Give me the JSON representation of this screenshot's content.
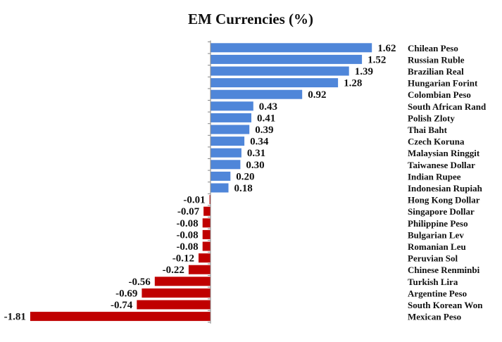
{
  "chart_data": {
    "type": "bar",
    "orientation": "horizontal",
    "title": "EM Currencies (%)",
    "xlabel": "",
    "ylabel": "",
    "xlim": [
      -1.81,
      1.62
    ],
    "categories": [
      "Chilean Peso",
      "Russian Ruble",
      "Brazilian Real",
      "Hungarian Forint",
      "Colombian Peso",
      "South African Rand",
      "Polish Zloty",
      "Thai Baht",
      "Czech Koruna",
      "Malaysian Ringgit",
      "Taiwanese Dollar",
      "Indian Rupee",
      "Indonesian Rupiah",
      "Hong Kong Dollar",
      "Singapore Dollar",
      "Philippine Peso",
      "Bulgarian Lev",
      "Romanian Leu",
      "Peruvian Sol",
      "Chinese Renminbi",
      "Turkish Lira",
      "Argentine Peso",
      "South Korean Won",
      "Mexican Peso"
    ],
    "values": [
      1.62,
      1.52,
      1.39,
      1.28,
      0.92,
      0.43,
      0.41,
      0.39,
      0.34,
      0.31,
      0.3,
      0.2,
      0.18,
      -0.01,
      -0.07,
      -0.08,
      -0.08,
      -0.08,
      -0.12,
      -0.22,
      -0.56,
      -0.69,
      -0.74,
      -1.81
    ],
    "value_labels": [
      "1.62",
      "1.52",
      "1.39",
      "1.28",
      "0.92",
      "0.43",
      "0.41",
      "0.39",
      "0.34",
      "0.31",
      "0.30",
      "0.20",
      "0.18",
      "-0.01",
      "-0.07",
      "-0.08",
      "-0.08",
      "-0.08",
      "-0.12",
      "-0.22",
      "-0.56",
      "-0.69",
      "-0.74",
      "-1.81"
    ],
    "colors": {
      "positive": "#4f86d9",
      "negative": "#c00000",
      "axis": "#888888",
      "text": "#111111"
    },
    "legend": "none",
    "grid": false
  }
}
